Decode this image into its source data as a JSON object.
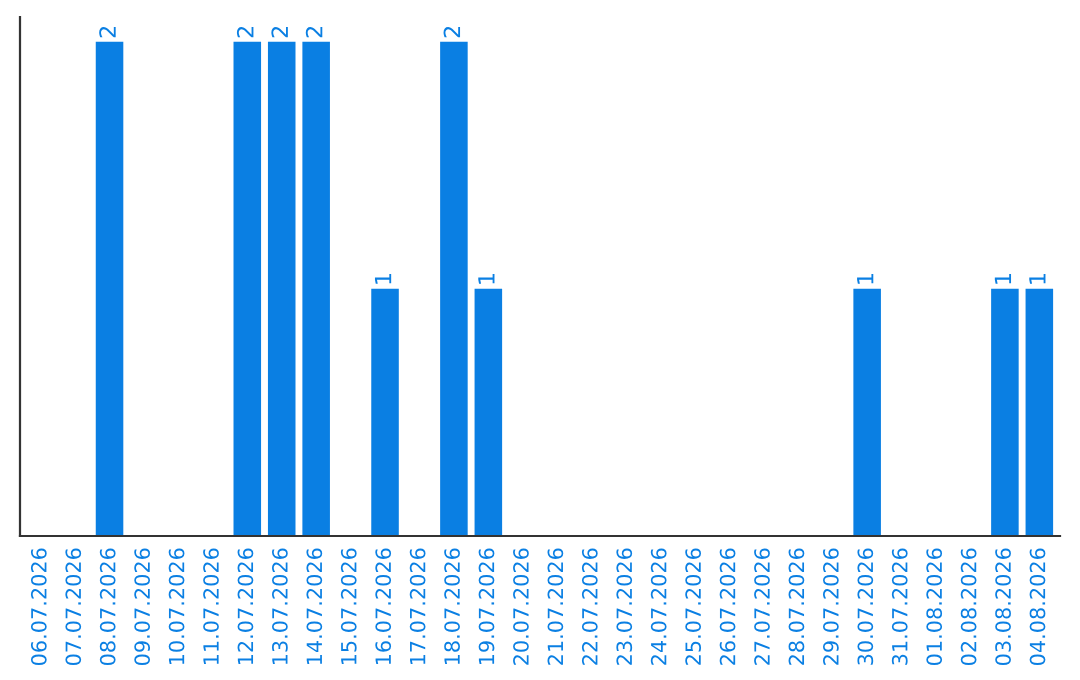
{
  "chart_data": {
    "type": "bar",
    "categories": [
      "06.07.2026",
      "07.07.2026",
      "08.07.2026",
      "09.07.2026",
      "10.07.2026",
      "11.07.2026",
      "12.07.2026",
      "13.07.2026",
      "14.07.2026",
      "15.07.2026",
      "16.07.2026",
      "17.07.2026",
      "18.07.2026",
      "19.07.2026",
      "20.07.2026",
      "21.07.2026",
      "22.07.2026",
      "23.07.2026",
      "24.07.2026",
      "25.07.2026",
      "26.07.2026",
      "27.07.2026",
      "28.07.2026",
      "29.07.2026",
      "30.07.2026",
      "31.07.2026",
      "01.08.2026",
      "02.08.2026",
      "03.08.2026",
      "04.08.2026"
    ],
    "values": [
      0,
      0,
      2,
      0,
      0,
      0,
      2,
      2,
      2,
      0,
      1,
      0,
      2,
      1,
      0,
      0,
      0,
      0,
      0,
      0,
      0,
      0,
      0,
      0,
      1,
      0,
      0,
      0,
      1,
      1
    ],
    "value_labels": [
      null,
      null,
      "2",
      null,
      null,
      null,
      "2",
      "2",
      "2",
      null,
      "1",
      null,
      "2",
      "1",
      null,
      null,
      null,
      null,
      null,
      null,
      null,
      null,
      null,
      null,
      "1",
      null,
      null,
      null,
      "1",
      "1"
    ],
    "color": "#0a7fe3",
    "tick_labels": "x",
    "grid": false
  }
}
